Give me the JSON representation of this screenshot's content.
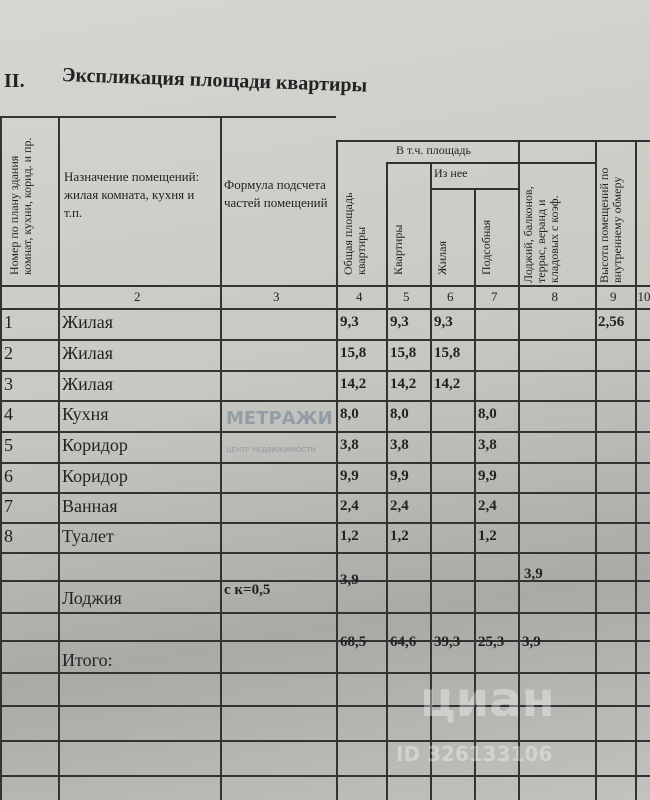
{
  "section_number": "II.",
  "title": "Экспликация площади квартиры",
  "headers": {
    "col2": "Номер по плану здания комнат, кухни, корид. и пр.",
    "col3": "Назначение помещений: жилая комната, кухня и т.п.",
    "col4": "Формула подсчета частей помещений",
    "col5": "Общая площадь квартиры",
    "group": "В т.ч. площадь",
    "col6": "Квартиры",
    "subgroup": "Из нее",
    "col7": "Жилая",
    "col8": "Подсобная",
    "col9": "Лоджий, балконов, террас, веранд и кладовых с коэф.",
    "col10": "Высота помещений по внутреннему обмеру"
  },
  "column_numbers": [
    "2",
    "3",
    "4",
    "5",
    "6",
    "7",
    "8",
    "9",
    "10"
  ],
  "rows": [
    {
      "num": "1",
      "name": "Жилая",
      "formula": "",
      "total": "9,3",
      "apt": "9,3",
      "living": "9,3",
      "aux": "",
      "loggia": "",
      "height": "2,56"
    },
    {
      "num": "2",
      "name": "Жилая",
      "formula": "",
      "total": "15,8",
      "apt": "15,8",
      "living": "15,8",
      "aux": "",
      "loggia": "",
      "height": ""
    },
    {
      "num": "3",
      "name": "Жилая",
      "formula": "",
      "total": "14,2",
      "apt": "14,2",
      "living": "14,2",
      "aux": "",
      "loggia": "",
      "height": ""
    },
    {
      "num": "4",
      "name": "Кухня",
      "formula": "",
      "total": "8,0",
      "apt": "8,0",
      "living": "",
      "aux": "8,0",
      "loggia": "",
      "height": ""
    },
    {
      "num": "5",
      "name": "Коридор",
      "formula": "",
      "total": "3,8",
      "apt": "3,8",
      "living": "",
      "aux": "3,8",
      "loggia": "",
      "height": ""
    },
    {
      "num": "6",
      "name": "Коридор",
      "formula": "",
      "total": "9,9",
      "apt": "9,9",
      "living": "",
      "aux": "9,9",
      "loggia": "",
      "height": ""
    },
    {
      "num": "7",
      "name": "Ванная",
      "formula": "",
      "total": "2,4",
      "apt": "2,4",
      "living": "",
      "aux": "2,4",
      "loggia": "",
      "height": ""
    },
    {
      "num": "8",
      "name": "Туалет",
      "formula": "",
      "total": "1,2",
      "apt": "1,2",
      "living": "",
      "aux": "1,2",
      "loggia": "",
      "height": ""
    }
  ],
  "loggia": {
    "name": "Лоджия",
    "formula": "с к=0,5",
    "total": "3,9",
    "loggia": "3,9"
  },
  "totals": {
    "label": "Итого:",
    "total": "68,5",
    "apt": "64,6",
    "living": "39,3",
    "aux": "25,3",
    "loggia": "3,9"
  },
  "watermarks": {
    "agency": "МЕТРАЖИ",
    "agency_sub": "ЦЕНТР НЕДВИЖИМОСТИ",
    "cian": "циан",
    "cian_id": "ID 326133106"
  }
}
